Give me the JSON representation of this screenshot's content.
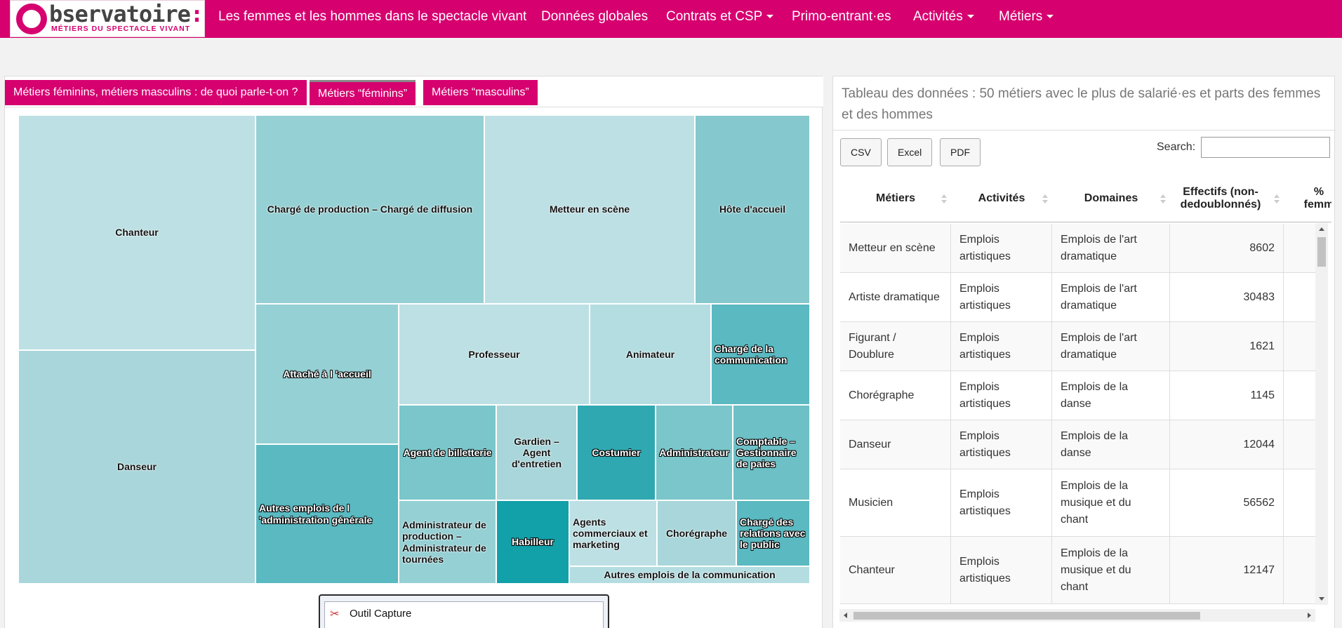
{
  "nav": {
    "logo_word": "bservatoire",
    "logo_colon": ":",
    "logo_sub": "MÉTIERS DU SPECTACLE VIVANT",
    "brand": "Les femmes et les hommes dans le spectacle vivant",
    "items": [
      {
        "label": "Données globales",
        "dropdown": false
      },
      {
        "label": "Contrats et CSP",
        "dropdown": true
      },
      {
        "label": "Primo-entrant·es",
        "dropdown": false
      },
      {
        "label": "Activités",
        "dropdown": true
      },
      {
        "label": "Métiers",
        "dropdown": true
      }
    ]
  },
  "tabs": [
    {
      "label": "Métiers féminins, métiers masculins : de quoi parle-t-on ?",
      "active": false
    },
    {
      "label": "Métiers “féminins”",
      "active": true
    },
    {
      "label": "Métiers “masculins”",
      "active": false
    }
  ],
  "treemap": {
    "cells": [
      {
        "label": "Chanteur",
        "color": "#bde0e4"
      },
      {
        "label": "Danseur",
        "color": "#a9d6da"
      },
      {
        "label": "Chargé de production – Chargé de diffusion",
        "color": "#95d0d4"
      },
      {
        "label": "Metteur en scène",
        "color": "#bde0e4"
      },
      {
        "label": "Hôte d'accueil",
        "color": "#85c9ce"
      },
      {
        "label": "Attaché à l 'accueil",
        "color": "#95d0d4"
      },
      {
        "label": "Professeur",
        "color": "#bde0e4"
      },
      {
        "label": "Animateur",
        "color": "#b4dde1"
      },
      {
        "label": "Chargé de la communication",
        "color": "#5ab9c1"
      },
      {
        "label": "Autres emplois de l 'administration générale",
        "color": "#5ab9c1"
      },
      {
        "label": "Agent de billetterie",
        "color": "#7ac6cb"
      },
      {
        "label": "Gardien – Agent d'entretien",
        "color": "#a9d6da"
      },
      {
        "label": "Costumier",
        "color": "#2fa8b1"
      },
      {
        "label": "Administrateur",
        "color": "#7ac6cb"
      },
      {
        "label": "Comptable – Gestionnaire de paies",
        "color": "#6cc0c6"
      },
      {
        "label": "Administrateur de production – Administrateur de tournées",
        "color": "#95d0d4"
      },
      {
        "label": "Habilleur",
        "color": "#12a0a9"
      },
      {
        "label": "Agents commerciaux et marketing",
        "color": "#bde0e4"
      },
      {
        "label": "Chorégraphe",
        "color": "#a9d6da"
      },
      {
        "label": "Chargé des relations avec le public",
        "color": "#5ab9c1"
      },
      {
        "label": "Autres emplois de la communication",
        "color": "#b4dde1"
      }
    ]
  },
  "popup": {
    "label": "Outil Capture"
  },
  "table_panel": {
    "title": "Tableau des données : 50 métiers avec le plus de salarié·es et parts des femmes et des hommes",
    "buttons": [
      "CSV",
      "Excel",
      "PDF"
    ],
    "search_label": "Search:",
    "search_value": "",
    "headers": [
      "Métiers",
      "Activités",
      "Domaines",
      "Effectifs (non-dedoublonnés)",
      "% femm"
    ],
    "rows": [
      {
        "metier": "Metteur en scène",
        "activite": "Emplois artistiques",
        "domaine": "Emplois de l'art dramatique",
        "effectif": "8602"
      },
      {
        "metier": "Artiste dramatique",
        "activite": "Emplois artistiques",
        "domaine": "Emplois de l'art dramatique",
        "effectif": "30483"
      },
      {
        "metier": "Figurant / Doublure",
        "activite": "Emplois artistiques",
        "domaine": "Emplois de l'art dramatique",
        "effectif": "1621"
      },
      {
        "metier": "Chorégraphe",
        "activite": "Emplois artistiques",
        "domaine": "Emplois de la danse",
        "effectif": "1145"
      },
      {
        "metier": "Danseur",
        "activite": "Emplois artistiques",
        "domaine": "Emplois de la danse",
        "effectif": "12044"
      },
      {
        "metier": "Musicien",
        "activite": "Emplois artistiques",
        "domaine": "Emplois de la musique et du chant",
        "effectif": "56562"
      },
      {
        "metier": "Chanteur",
        "activite": "Emplois artistiques",
        "domaine": "Emplois de la musique et du chant",
        "effectif": "12147"
      }
    ]
  }
}
